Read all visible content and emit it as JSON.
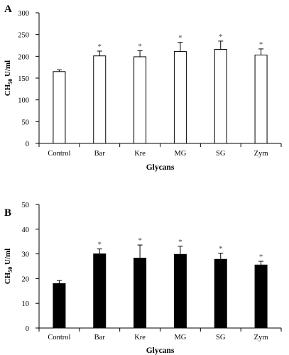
{
  "chart_data": [
    {
      "panel": "A",
      "type": "bar",
      "fill": "#ffffff",
      "stroke": "#000000",
      "categories": [
        "Control",
        "Bar",
        "Kre",
        "MG",
        "SG",
        "Zym"
      ],
      "values": [
        165,
        201,
        199,
        211,
        216,
        203
      ],
      "errors": [
        4,
        11,
        14,
        21,
        19,
        14
      ],
      "significance": [
        "",
        "*",
        "*",
        "*",
        "*",
        "*"
      ],
      "ylabel_main": "CH",
      "ylabel_sub": "50",
      "ylabel_unit": " U/ml",
      "xlabel": "Glycans",
      "ylim": [
        0,
        300
      ],
      "yticks": [
        0,
        50,
        100,
        150,
        200,
        250,
        300
      ]
    },
    {
      "panel": "B",
      "type": "bar",
      "fill": "#000000",
      "stroke": "#000000",
      "categories": [
        "Control",
        "Bar",
        "Kre",
        "MG",
        "SG",
        "Zym"
      ],
      "values": [
        18,
        30,
        28.3,
        29.8,
        27.8,
        25.5
      ],
      "errors": [
        1.2,
        2,
        5.3,
        3.3,
        2.5,
        1.5
      ],
      "significance": [
        "",
        "*",
        "*",
        "*",
        "*",
        "*"
      ],
      "ylabel_main": "CH",
      "ylabel_sub": "50",
      "ylabel_unit": " U/ml",
      "xlabel": "Glycans",
      "ylim": [
        0,
        50
      ],
      "yticks": [
        0,
        10,
        20,
        30,
        40,
        50
      ]
    }
  ]
}
